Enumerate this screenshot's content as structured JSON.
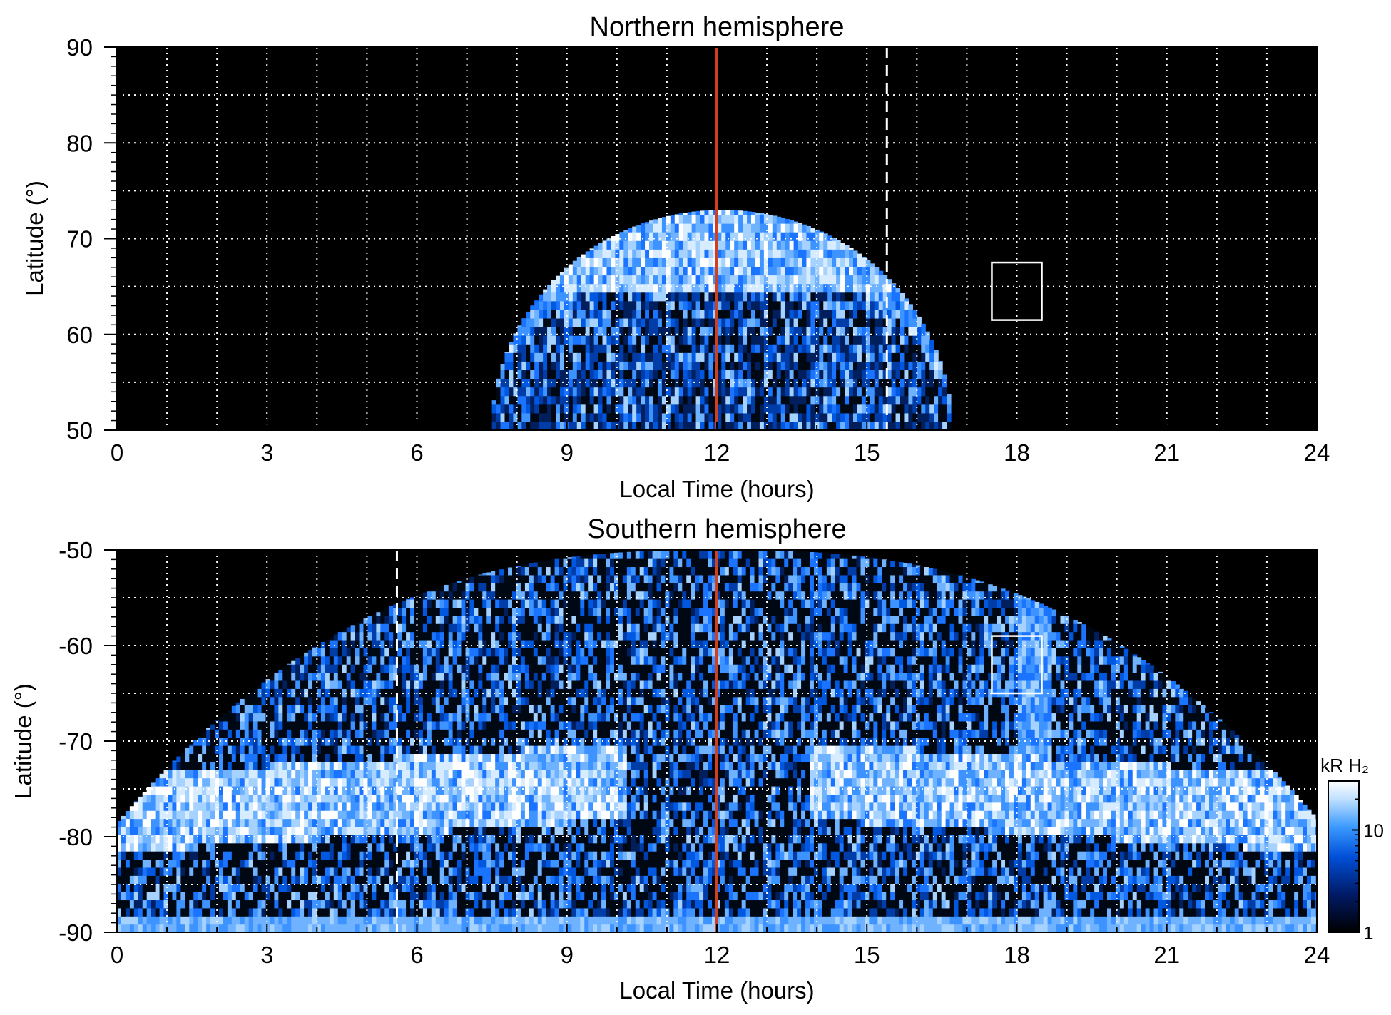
{
  "chart_data": [
    {
      "type": "heatmap",
      "title": "Northern hemisphere",
      "xlabel": "Local Time (hours)",
      "ylabel": "Latitude (°)",
      "xlim": [
        0,
        24
      ],
      "ylim": [
        50,
        90
      ],
      "x_ticks": [
        "0",
        "3",
        "6",
        "9",
        "12",
        "15",
        "18",
        "21",
        "24"
      ],
      "y_ticks": [
        "50",
        "60",
        "70",
        "80",
        "90"
      ],
      "grid": true,
      "emission_region": {
        "lt_start": 7.5,
        "lt_end": 16.7,
        "lat_peak": 73,
        "auroral_oval_lat": [
          64,
          70
        ]
      },
      "markers": {
        "red_line_lt": 12,
        "dashed_line_lt": 15.4,
        "box_lt": [
          17.5,
          18.5
        ],
        "box_lat": [
          61.5,
          67.5
        ]
      }
    },
    {
      "type": "heatmap",
      "title": "Southern hemisphere",
      "xlabel": "Local Time (hours)",
      "ylabel": "Latitude (°)",
      "xlim": [
        0,
        24
      ],
      "ylim": [
        -90,
        -50
      ],
      "x_ticks": [
        "0",
        "3",
        "6",
        "9",
        "12",
        "15",
        "18",
        "21",
        "24"
      ],
      "y_ticks": [
        "-50",
        "-60",
        "-70",
        "-80",
        "-90"
      ],
      "grid": true,
      "emission_region": {
        "lt_start": 0,
        "lt_end": 24,
        "auroral_oval_lat": [
          -80,
          -72
        ]
      },
      "markers": {
        "red_line_lt": 12,
        "dashed_line_lt": 5.6,
        "box_lt": [
          17.5,
          18.5
        ],
        "box_lat": [
          -65,
          -59
        ]
      }
    }
  ],
  "colorbar": {
    "label": "kR H₂",
    "ticks": [
      "1",
      "10"
    ],
    "scale": "log",
    "range": [
      1,
      30
    ],
    "colors": [
      "#000000",
      "#001a66",
      "#0050d8",
      "#3d9bff",
      "#bfe0ff",
      "#ffffff"
    ]
  },
  "colors": {
    "red_line": "#d0401e",
    "grid": "#ffffff",
    "background": "#000000"
  }
}
